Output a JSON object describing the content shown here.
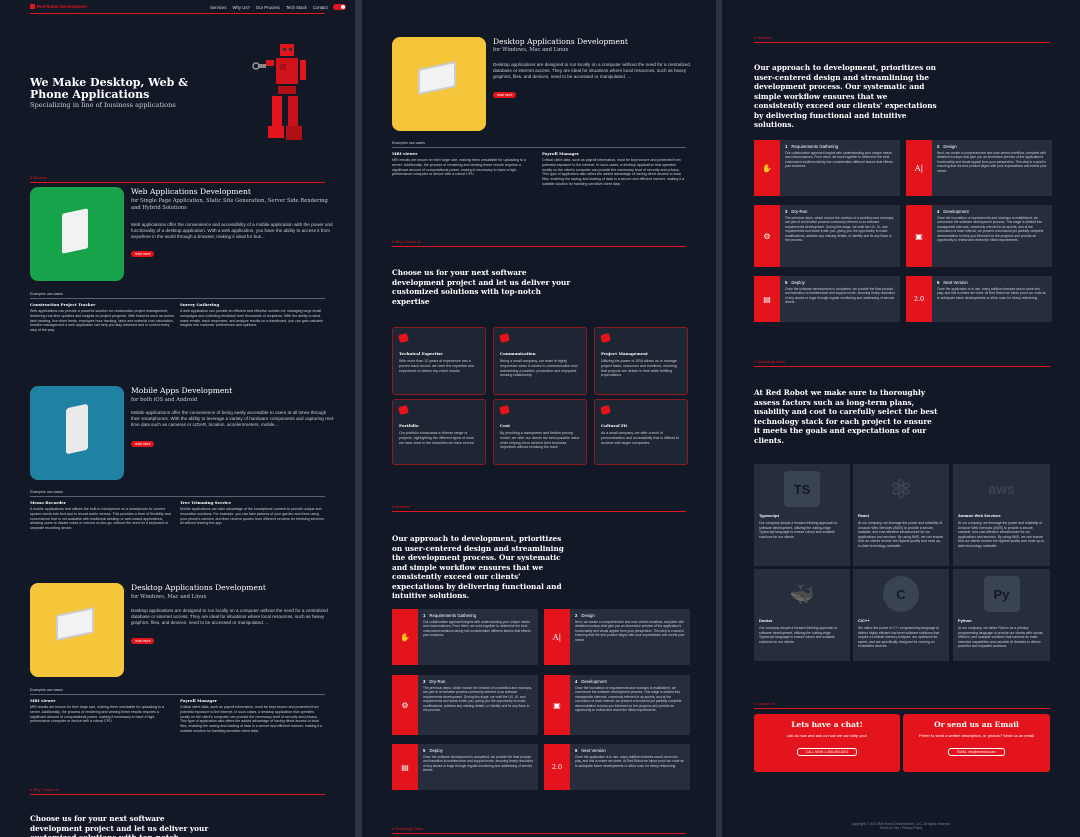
{
  "brand": {
    "name": "Red Robot Development",
    "accent": "#e3141b",
    "bg": "#121826"
  },
  "nav": {
    "items": [
      "Services",
      "Why Us?",
      "Our Process",
      "Tech Stack",
      "Contact"
    ]
  },
  "hero": {
    "title": "We Make Desktop, Web & Phone Applications",
    "subtitle": "Specializing in line of business applications"
  },
  "sections": {
    "services": "# Services",
    "why": "# Why Choose Us",
    "workflow": "# Workflow",
    "tech": "# Technology Stack",
    "contact": "# Contact Us"
  },
  "services": [
    {
      "title": "Web Applications Development",
      "sub": "for Single Page Application, Static Site Generation, Server Side Rendering and Hybrid Solutions",
      "desc": "Web applications offer the convenience and accessibility of a mobile application with the power and functionality of a desktop application. With a web application, you have the ability to access it from anywhere in the world through a browser, making it ideal for bus...",
      "btn": "read more",
      "color": "#17a34a",
      "examples_label": "Examples use cases",
      "examples": [
        {
          "t": "Construction Project Tracker",
          "d": "Web applications can provide a powerful solution for construction project management, delivering real-time updates and insights on project progress. With features such as worker task tracking, live video feeds, employee hour tracking, labor and material cost calculation, timeline management a web application can help you stay informed and in control every step of the way."
        },
        {
          "t": "Survey Gathering",
          "d": "A web application can provide an efficient and effective solution for managing large email campaigns and collecting feedback from thousands of recipients. With the ability to send mass emails, track responses, and analyze results on a dashboard, you can gain valuable insights into customer preferences and opinions."
        }
      ]
    },
    {
      "title": "Mobile Apps Development",
      "sub": "for both iOS and Android",
      "desc": "Mobile applications offer the convenience of being easily accessible to users at all times through their smartphones. With the ability to leverage a variety of hardware components and capturing real-time data such as cameras or LIDAR, location, accelerometers, mobile...",
      "btn": "read more",
      "color": "#1f82a3",
      "examples_label": "Examples use cases",
      "examples": [
        {
          "t": "Memo Recorder",
          "d": "A mobile applications that utilizes the built-in microphone on a smartphone to convert spoken words into text and to record audio memos. This provides a level of flexibility and convenience that is not available with traditional desktop or web-based applications, allowing users to dictate notes or memos on-the-go, without the need for a keyboard or separate recording device."
        },
        {
          "t": "Tree Trimming Service",
          "d": "Mobile applications can take advantage of the smartphone camera to provide unique and innovative solutions. For example, you can take pictures of your garden and trees using your phone's camera, and then receive quotes from different vendors for trimming services, all without leaving the app."
        }
      ]
    },
    {
      "title": "Desktop Applications Development",
      "sub": "for Windows, Mac and Linux",
      "desc": "Desktop applications are designed to run locally on a computer without the need for a centralized database or internet access. They are ideal for situations where local resources, such as heavy graphics, files, and devices, need to be accessed or manipulated. ...",
      "btn": "read more",
      "color": "#f5c53a",
      "examples_label": "Examples use cases",
      "examples": [
        {
          "t": "MRI viewer",
          "d": "MRI results are known for their large size, making them unsuitable for uploading to a server. Additionally, the process of rendering and viewing these results requires a significant amount of computational power, making it necessary to have a high-performance computer or device with a robust CPU."
        },
        {
          "t": "Payroll Manager",
          "d": "Critical client data, such as payroll information, must be kept secure and protected from potential exposure to the internet. In such cases, a desktop application that operates locally on the client's computer can provide the necessary level of security and privacy. This type of application also offers the added advantage of having direct access to local files, enabling the saving and loading of data in a secure and efficient manner, making it a suitable solution for handling sensitive client data."
        }
      ]
    }
  ],
  "why": {
    "heading": "Choose us for your next software development project and let us deliver your customized solutions with top-notch expertise",
    "cards": [
      {
        "t": "Technical Expertise",
        "d": "With more than 10 years of experience and a proven track record, we have the expertise and experience to deliver top-notch results"
      },
      {
        "t": "Communication",
        "d": "Being a small company, our team is highly responsive when it comes to communication and maintaining a positive, productive and enjoyable working relationship"
      },
      {
        "t": "Project Management",
        "d": "Utilizing the power of JIRA allows us to manage project tasks, resources and timelines, ensuring that projects are deliver in time while fulfilling expectations"
      },
      {
        "t": "Portfolio",
        "d": "Our portfolio showcases a diverse range of projects, highlighting the different types of work we have done in the industries we have served"
      },
      {
        "t": "Cost",
        "d": "By providing a transparent and flexible pricing model, we offer our clients the best possible value while helping them achieve their business objectives without breaking the bank"
      },
      {
        "t": "Cultural Fit",
        "d": "As a small company, we offer a level of personalization and accessibility that is difficult to achieve with larger companies"
      }
    ]
  },
  "workflow": {
    "heading": "Our approach to development, prioritizes on user-centered design and streamlining the development process. Our systematic and simple workflow ensures that we consistently exceed our clients' expectations by delivering functional and intuitive solutions.",
    "steps": [
      {
        "n": "1",
        "t": "Requirements Gathering",
        "d": "Our collaborative approach begins with understanding your unique needs and circumstances. From there, we work together to determine the best customized solutions taking into consideration different factors that effects your business"
      },
      {
        "n": "2",
        "t": "Design",
        "d": "Next, we create a comprehensive and user-centric workflow, complete with detailed mockups that give you an immersive preview of the application's functionality and visual appeal from your perspective. This step is crucial in ensuring that the end product aligns with your expectations and meets your needs."
      },
      {
        "n": "3",
        "t": "Dry-Run",
        "d": "The previous steps, which involve the creation of a workflow and mockups, are part of an iterative process commonly referred to as software requirements development. During this stage, we craft the UX, UI, and requirements and share it with you, giving you the opportunity to make modifications, address any missing details, or identify and fix any flaws in the process."
      },
      {
        "n": "4",
        "t": "Development",
        "d": "Once the foundation of requirements and mockups is established, we commence the software development process. This stage is divided into manageable intervals, commonly referred to as sprints, and at the conclusion of each interval, we present a functional yet partially complete demonstration to keep you informed on the progress and provide an opportunity to review and revise the initial requirements."
      },
      {
        "n": "5",
        "t": "Deploy",
        "d": "Once the software development is completed, we provide the final product and transition to maintenance and support mode, ensuring timely resolution of any issues or bugs through regular monitoring and addressing of service tickets."
      },
      {
        "n": "6",
        "t": "Next Version",
        "d": "Once the application is in use, many addition features would come into play, and this is where we shine. At Red Robot we future proof our code as to anticipate future developments or allow room for heavy refactoring."
      }
    ]
  },
  "tech": {
    "heading": "At Red Robot we make sure to thoroughly assess factors such as long-term plans, usability and cost to carefully select the best technology stack for each project to ensure it meets the goals and expectations of our clients.",
    "items": [
      {
        "t": "Typescript",
        "logo": "TS",
        "d": "Our company adopts a forward-thinking approach to software development, utilizing the cutting-edge Typescript language to ensure robust and scalable solutions for our clients."
      },
      {
        "t": "React",
        "logo": "⚛",
        "d": "At our company, we leverage the power and reliability of Amazon Web Services (AWS) to provide a secure, scalable, and cost-effective infrastructure for our applications and services. By using AWS, we can ensure that our clients receive the highest quality and most up-to-date technology available."
      },
      {
        "t": "Amazon Web Services",
        "logo": "aws",
        "d": "At our company, we leverage the power and reliability of Amazon Web Services (AWS) to provide a secure, scalable, and cost-effective infrastructure for our applications and services. By using AWS, we can ensure that our clients receive the highest quality and most up-to-date technology available."
      },
      {
        "t": "Docker",
        "logo": "🐳",
        "d": "Our company adopts a forward-thinking approach to software development, utilizing the cutting-edge Typescript language to ensure robust and scalable solutions for our clients."
      },
      {
        "t": "C/C++",
        "logo": "C",
        "d": "We utilize the power of C++ programming language to deliver highly efficient low-level software solutions that require a minimal memory footprint, are optimized for speed, and are specifically designed for running on embedded devices."
      },
      {
        "t": "Python",
        "logo": "Py",
        "d": "At our company, we utilize Python as a primary programming language to provide our clients with robust, efficient, and scalable solutions that harness its math-intensive capabilities and valuable AI libraries to deliver powerful and impactful solutions."
      }
    ]
  },
  "contact": {
    "chat": {
      "t": "Lets have a chat!",
      "d": "call us now and ask us how we can help you!",
      "b": "CALL NOW 1-408-060-6202"
    },
    "email": {
      "t": "Or send us an Email",
      "d": "Prefer to send a written description, or photos? Send us an email",
      "b": "EMAIL info@redrobot.dev"
    }
  },
  "footer": {
    "copy": "Copyright © 2023 Red Robot Development, LLC. All rights reserved.",
    "links": "Terms of Use | Privacy Policy"
  }
}
